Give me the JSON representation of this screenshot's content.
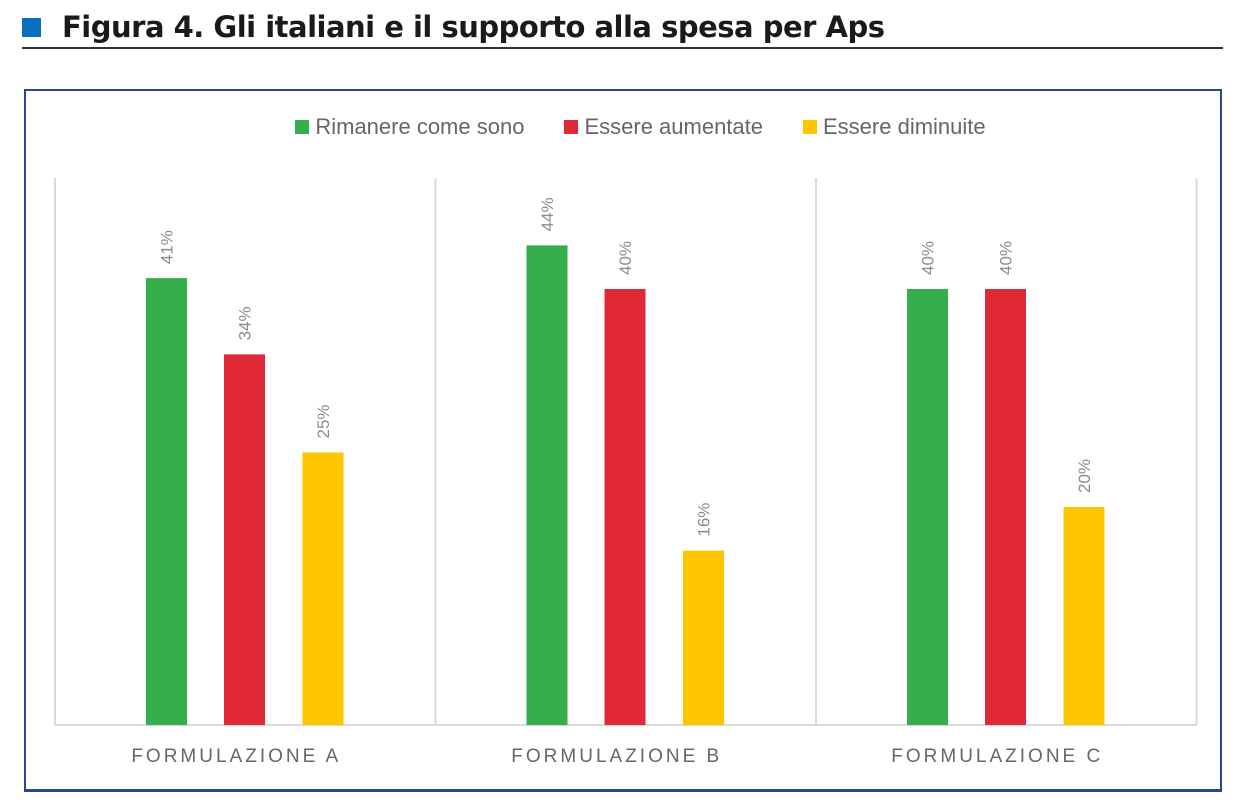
{
  "header": {
    "title": "Figura 4. Gli italiani e il supporto alla spesa per Aps"
  },
  "chart_data": {
    "type": "bar",
    "title": "Figura 4. Gli italiani e il supporto alla spesa per Aps",
    "categories": [
      "FORMULAZIONE A",
      "FORMULAZIONE B",
      "FORMULAZIONE C"
    ],
    "series": [
      {
        "name": "Rimanere come sono",
        "color": "#34ad4b",
        "values": [
          41,
          44,
          40
        ],
        "labels": [
          "41%",
          "44%",
          "40%"
        ]
      },
      {
        "name": "Essere aumentate",
        "color": "#e12837",
        "values": [
          34,
          40,
          40
        ],
        "labels": [
          "34%",
          "40%",
          "40%"
        ]
      },
      {
        "name": "Essere diminuite",
        "color": "#ffc600",
        "values": [
          25,
          16,
          20
        ],
        "labels": [
          "25%",
          "16%",
          "20%"
        ]
      }
    ],
    "xlabel": "",
    "ylabel": "",
    "ylim": [
      0,
      50
    ],
    "grid": false,
    "legend": "top-center"
  }
}
